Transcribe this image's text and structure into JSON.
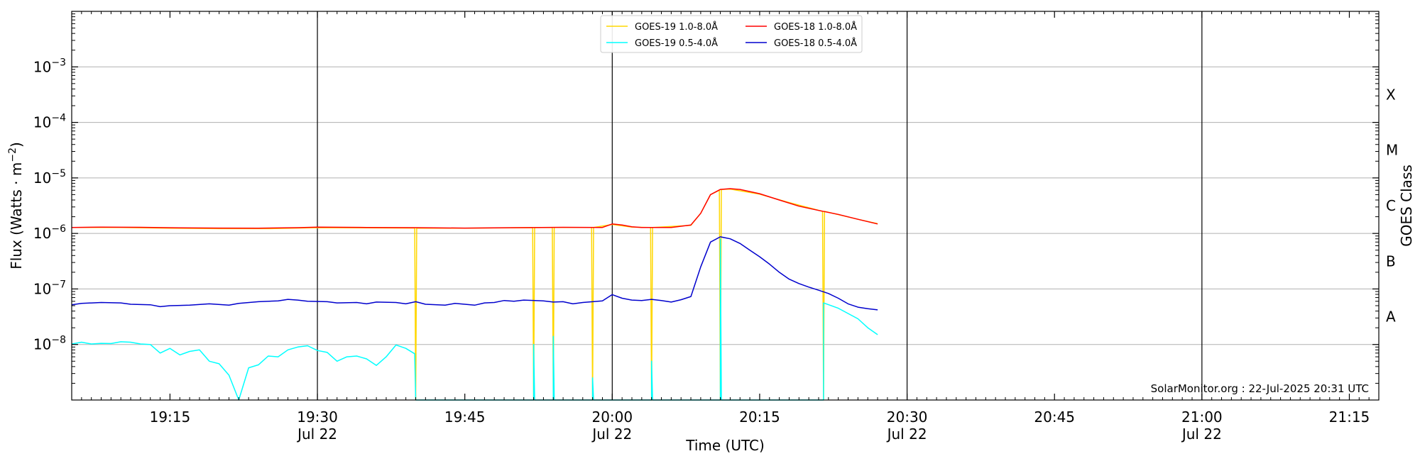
{
  "chart_data": {
    "type": "line",
    "xlabel": "Time (UTC)",
    "ylabel": "Flux (Watts · m⁻²)",
    "ylabel_right": "GOES Class",
    "credit": "SolarMonitor.org : 22-Jul-2025 20:31 UTC",
    "xlim": [
      "19:05",
      "21:18"
    ],
    "ylim": [
      1e-09,
      0.01
    ],
    "yscale": "log",
    "grid": "horizontal",
    "legend_position": "top-center",
    "x_ticks": [
      {
        "t": "19:15",
        "label": "19:15",
        "sub": ""
      },
      {
        "t": "19:30",
        "label": "19:30",
        "sub": "Jul 22"
      },
      {
        "t": "19:45",
        "label": "19:45",
        "sub": ""
      },
      {
        "t": "20:00",
        "label": "20:00",
        "sub": "Jul 22"
      },
      {
        "t": "20:15",
        "label": "20:15",
        "sub": ""
      },
      {
        "t": "20:30",
        "label": "20:30",
        "sub": "Jul 22"
      },
      {
        "t": "20:45",
        "label": "20:45",
        "sub": ""
      },
      {
        "t": "21:00",
        "label": "21:00",
        "sub": "Jul 22"
      },
      {
        "t": "21:15",
        "label": "21:15",
        "sub": ""
      }
    ],
    "day_lines": [
      "19:30",
      "20:00",
      "20:30",
      "21:00"
    ],
    "y_ticks": [
      {
        "value": 1e-08,
        "base": "10",
        "exp": "−8"
      },
      {
        "value": 1e-07,
        "base": "10",
        "exp": "−7"
      },
      {
        "value": 1e-06,
        "base": "10",
        "exp": "−6"
      },
      {
        "value": 1e-05,
        "base": "10",
        "exp": "−5"
      },
      {
        "value": 0.0001,
        "base": "10",
        "exp": "−4"
      },
      {
        "value": 0.001,
        "base": "10",
        "exp": "−3"
      }
    ],
    "goes_classes": [
      {
        "label": "A",
        "value": 3.16e-08
      },
      {
        "label": "B",
        "value": 3.16e-07
      },
      {
        "label": "C",
        "value": 3.16e-06
      },
      {
        "label": "M",
        "value": 3.16e-05
      },
      {
        "label": "X",
        "value": 0.000316
      }
    ],
    "series": [
      {
        "name": "GOES-19 1.0-8.0Å",
        "color": "#ffd700",
        "points": [
          [
            "19:05",
            1.28e-06
          ],
          [
            "19:10",
            1.28e-06
          ],
          [
            "19:15",
            1.24e-06
          ],
          [
            "19:20",
            1.22e-06
          ],
          [
            "19:25",
            1.22e-06
          ],
          [
            "19:30",
            1.27e-06
          ],
          [
            "19:35",
            1.26e-06
          ],
          [
            "19:39.9",
            1.25e-06
          ],
          [
            "19:40",
            1e-09
          ],
          [
            "19:40.1",
            1.25e-06
          ],
          [
            "19:45",
            1.24e-06
          ],
          [
            "19:51.9",
            1.27e-06
          ],
          [
            "19:52",
            1e-09
          ],
          [
            "19:52.1",
            1.27e-06
          ],
          [
            "19:53.9",
            1.28e-06
          ],
          [
            "19:54",
            1e-09
          ],
          [
            "19:54.1",
            1.28e-06
          ],
          [
            "19:57.9",
            1.28e-06
          ],
          [
            "19:58",
            1e-09
          ],
          [
            "19:58.1",
            1.28e-06
          ],
          [
            "20:00",
            1.45e-06
          ],
          [
            "20:02",
            1.3e-06
          ],
          [
            "20:03.9",
            1.28e-06
          ],
          [
            "20:04",
            1e-09
          ],
          [
            "20:04.1",
            1.28e-06
          ],
          [
            "20:08",
            1.4e-06
          ],
          [
            "20:09",
            2.3e-06
          ],
          [
            "20:10",
            5e-06
          ],
          [
            "20:10.9",
            6e-06
          ],
          [
            "20:11",
            1e-09
          ],
          [
            "20:11.1",
            6.2e-06
          ],
          [
            "20:12",
            6.3e-06
          ],
          [
            "20:15",
            5.1e-06
          ],
          [
            "20:18",
            3.6e-06
          ],
          [
            "20:21.4",
            2.5e-06
          ],
          [
            "20:21.5",
            1e-09
          ],
          [
            "20:21.6",
            2.5e-06
          ],
          [
            "20:25",
            1.8e-06
          ],
          [
            "20:27",
            1.5e-06
          ]
        ]
      },
      {
        "name": "GOES-18 1.0-8.0Å",
        "color": "#ff0000",
        "points": [
          [
            "19:05",
            1.28e-06
          ],
          [
            "19:08",
            1.3e-06
          ],
          [
            "19:12",
            1.29e-06
          ],
          [
            "19:16",
            1.26e-06
          ],
          [
            "19:20",
            1.25e-06
          ],
          [
            "19:24",
            1.24e-06
          ],
          [
            "19:28",
            1.27e-06
          ],
          [
            "19:30",
            1.3e-06
          ],
          [
            "19:35",
            1.28e-06
          ],
          [
            "19:40",
            1.27e-06
          ],
          [
            "19:45",
            1.25e-06
          ],
          [
            "19:50",
            1.27e-06
          ],
          [
            "19:55",
            1.29e-06
          ],
          [
            "19:59",
            1.28e-06
          ],
          [
            "20:00",
            1.48e-06
          ],
          [
            "20:01",
            1.42e-06
          ],
          [
            "20:02",
            1.32e-06
          ],
          [
            "20:03",
            1.28e-06
          ],
          [
            "20:06",
            1.28e-06
          ],
          [
            "20:08",
            1.42e-06
          ],
          [
            "20:09",
            2.3e-06
          ],
          [
            "20:10",
            5e-06
          ],
          [
            "20:11",
            6.2e-06
          ],
          [
            "20:12",
            6.4e-06
          ],
          [
            "20:13",
            6.2e-06
          ],
          [
            "20:15",
            5.2e-06
          ],
          [
            "20:17",
            4e-06
          ],
          [
            "20:19",
            3.1e-06
          ],
          [
            "20:21",
            2.6e-06
          ],
          [
            "20:23",
            2.2e-06
          ],
          [
            "20:25",
            1.8e-06
          ],
          [
            "20:27",
            1.48e-06
          ]
        ]
      },
      {
        "name": "GOES-19 0.5-4.0Å",
        "color": "#00ffff",
        "points": [
          [
            "19:05",
            1.02e-08
          ],
          [
            "19:06",
            1.1e-08
          ],
          [
            "19:07",
            1.02e-08
          ],
          [
            "19:08",
            1.05e-08
          ],
          [
            "19:09",
            1.04e-08
          ],
          [
            "19:10",
            1.12e-08
          ],
          [
            "19:11",
            1.1e-08
          ],
          [
            "19:12",
            1.02e-08
          ],
          [
            "19:13",
            1e-08
          ],
          [
            "19:14",
            7e-09
          ],
          [
            "19:15",
            8.5e-09
          ],
          [
            "19:16",
            6.5e-09
          ],
          [
            "19:17",
            7.5e-09
          ],
          [
            "19:18",
            8e-09
          ],
          [
            "19:19",
            5e-09
          ],
          [
            "19:20",
            4.5e-09
          ],
          [
            "19:21",
            2.8e-09
          ],
          [
            "19:22",
            1e-09
          ],
          [
            "19:23",
            3.8e-09
          ],
          [
            "19:24",
            4.3e-09
          ],
          [
            "19:25",
            6.2e-09
          ],
          [
            "19:26",
            6e-09
          ],
          [
            "19:27",
            8e-09
          ],
          [
            "19:28",
            9e-09
          ],
          [
            "19:29",
            9.5e-09
          ],
          [
            "19:30",
            7.8e-09
          ],
          [
            "19:31",
            7.2e-09
          ],
          [
            "19:32",
            5e-09
          ],
          [
            "19:33",
            6e-09
          ],
          [
            "19:34",
            6.2e-09
          ],
          [
            "19:35",
            5.5e-09
          ],
          [
            "19:36",
            4.2e-09
          ],
          [
            "19:37",
            6e-09
          ],
          [
            "19:38",
            9.8e-09
          ],
          [
            "19:39",
            8.5e-09
          ],
          [
            "19:39.9",
            6.8e-09
          ],
          [
            "19:40",
            1e-09
          ],
          [
            "19:52",
            1e-09
          ],
          [
            "19:52",
            1e-08
          ],
          [
            "19:52.1",
            1e-09
          ],
          [
            "19:54",
            1e-09
          ],
          [
            "19:54",
            1.4e-08
          ],
          [
            "19:54.1",
            1e-09
          ],
          [
            "19:58",
            1e-09
          ],
          [
            "19:58",
            2.5e-09
          ],
          [
            "19:58.1",
            1e-09
          ],
          [
            "20:04",
            1e-09
          ],
          [
            "20:04",
            5e-09
          ],
          [
            "20:04.1",
            1e-09
          ],
          [
            "20:11",
            1e-09
          ],
          [
            "20:11",
            8e-07
          ],
          [
            "20:11.1",
            1e-09
          ],
          [
            "20:21.5",
            1e-09
          ],
          [
            "20:21.5",
            5.6e-08
          ],
          [
            "20:23",
            4.5e-08
          ],
          [
            "20:25",
            2.9e-08
          ],
          [
            "20:26",
            2e-08
          ],
          [
            "20:27",
            1.5e-08
          ]
        ]
      },
      {
        "name": "GOES-18 0.5-4.0Å",
        "color": "#0000cd",
        "points": [
          [
            "19:05",
            5.2e-08
          ],
          [
            "19:06",
            5.5e-08
          ],
          [
            "19:08",
            5.7e-08
          ],
          [
            "19:10",
            5.6e-08
          ],
          [
            "19:11",
            5.3e-08
          ],
          [
            "19:13",
            5.2e-08
          ],
          [
            "19:14",
            4.8e-08
          ],
          [
            "19:15",
            5e-08
          ],
          [
            "19:17",
            5.1e-08
          ],
          [
            "19:19",
            5.4e-08
          ],
          [
            "19:21",
            5.1e-08
          ],
          [
            "19:22",
            5.5e-08
          ],
          [
            "19:24",
            5.9e-08
          ],
          [
            "19:26",
            6.1e-08
          ],
          [
            "19:27",
            6.5e-08
          ],
          [
            "19:28",
            6.3e-08
          ],
          [
            "19:29",
            6e-08
          ],
          [
            "19:31",
            5.9e-08
          ],
          [
            "19:32",
            5.6e-08
          ],
          [
            "19:34",
            5.7e-08
          ],
          [
            "19:35",
            5.4e-08
          ],
          [
            "19:36",
            5.8e-08
          ],
          [
            "19:38",
            5.7e-08
          ],
          [
            "19:39",
            5.4e-08
          ],
          [
            "19:40",
            5.9e-08
          ],
          [
            "19:41",
            5.3e-08
          ],
          [
            "19:43",
            5.1e-08
          ],
          [
            "19:44",
            5.5e-08
          ],
          [
            "19:46",
            5.1e-08
          ],
          [
            "19:47",
            5.6e-08
          ],
          [
            "19:48",
            5.7e-08
          ],
          [
            "19:49",
            6.2e-08
          ],
          [
            "19:50",
            6e-08
          ],
          [
            "19:51",
            6.3e-08
          ],
          [
            "19:53",
            6.1e-08
          ],
          [
            "19:54",
            5.8e-08
          ],
          [
            "19:55",
            5.9e-08
          ],
          [
            "19:56",
            5.4e-08
          ],
          [
            "19:57",
            5.7e-08
          ],
          [
            "19:58",
            5.9e-08
          ],
          [
            "19:59",
            6.1e-08
          ],
          [
            "20:00",
            7.9e-08
          ],
          [
            "20:01",
            6.8e-08
          ],
          [
            "20:02",
            6.3e-08
          ],
          [
            "20:03",
            6.2e-08
          ],
          [
            "20:04",
            6.5e-08
          ],
          [
            "20:05",
            6.2e-08
          ],
          [
            "20:06",
            5.8e-08
          ],
          [
            "20:07",
            6.4e-08
          ],
          [
            "20:08",
            7.3e-08
          ],
          [
            "20:09",
            2.5e-07
          ],
          [
            "20:10",
            7e-07
          ],
          [
            "20:11",
            8.7e-07
          ],
          [
            "20:12",
            8e-07
          ],
          [
            "20:13",
            6.6e-07
          ],
          [
            "20:14",
            5e-07
          ],
          [
            "20:15",
            3.8e-07
          ],
          [
            "20:16",
            2.8e-07
          ],
          [
            "20:17",
            2e-07
          ],
          [
            "20:18",
            1.5e-07
          ],
          [
            "20:19",
            1.25e-07
          ],
          [
            "20:20",
            1.08e-07
          ],
          [
            "20:21",
            9.5e-08
          ],
          [
            "20:22",
            8.3e-08
          ],
          [
            "20:23",
            6.8e-08
          ],
          [
            "20:24",
            5.4e-08
          ],
          [
            "20:25",
            4.7e-08
          ],
          [
            "20:26",
            4.4e-08
          ],
          [
            "20:27",
            4.2e-08
          ]
        ]
      }
    ],
    "legend_order": [
      0,
      2,
      1,
      3
    ]
  }
}
